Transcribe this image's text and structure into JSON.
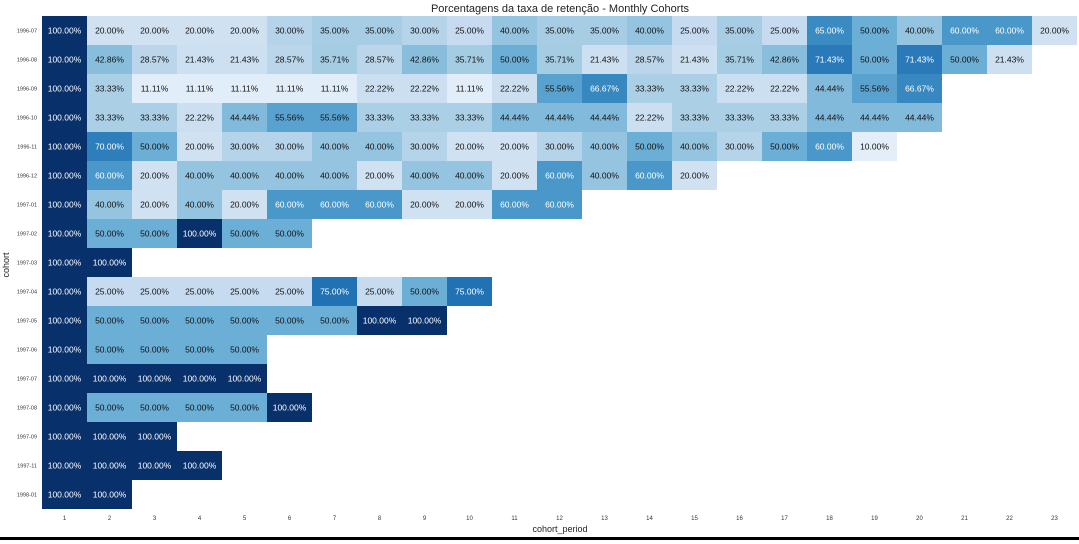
{
  "chart_data": {
    "type": "heatmap",
    "title": "Porcentagens da taxa de retenção - Monthly Cohorts",
    "xlabel": "cohort_period",
    "ylabel": "cohort",
    "x_ticks": [
      "1",
      "2",
      "3",
      "4",
      "5",
      "6",
      "7",
      "8",
      "9",
      "10",
      "11",
      "12",
      "13",
      "14",
      "15",
      "16",
      "17",
      "18",
      "19",
      "20",
      "21",
      "22",
      "23"
    ],
    "y_ticks": [
      "1996-07",
      "1996-08",
      "1996-09",
      "1996-10",
      "1996-11",
      "1996-12",
      "1997-01",
      "1997-02",
      "1997-03",
      "1997-04",
      "1997-05",
      "1997-06",
      "1997-07",
      "1997-08",
      "1997-09",
      "1997-11",
      "1998-01"
    ],
    "value_range": [
      0,
      100
    ],
    "colormap": "Blues",
    "values": [
      [
        100,
        20,
        20,
        20,
        20,
        30,
        35,
        35,
        30,
        25,
        40,
        35,
        35,
        40,
        25,
        35,
        25,
        65,
        50,
        40,
        60,
        60,
        20
      ],
      [
        100,
        42.86,
        28.57,
        21.43,
        21.43,
        28.57,
        35.71,
        28.57,
        42.86,
        35.71,
        50,
        35.71,
        21.43,
        28.57,
        21.43,
        35.71,
        42.86,
        71.43,
        50,
        71.43,
        50,
        21.43
      ],
      [
        100,
        33.33,
        11.11,
        11.11,
        11.11,
        11.11,
        11.11,
        22.22,
        22.22,
        11.11,
        22.22,
        55.56,
        66.67,
        33.33,
        33.33,
        22.22,
        22.22,
        44.44,
        55.56,
        66.67
      ],
      [
        100,
        33.33,
        33.33,
        22.22,
        44.44,
        55.56,
        55.56,
        33.33,
        33.33,
        33.33,
        44.44,
        44.44,
        44.44,
        22.22,
        33.33,
        33.33,
        33.33,
        44.44,
        44.44,
        44.44
      ],
      [
        100,
        70,
        50,
        20,
        30,
        30,
        40,
        40,
        30,
        20,
        20,
        30,
        40,
        50,
        40,
        30,
        50,
        60,
        10
      ],
      [
        100,
        60,
        20,
        40,
        40,
        40,
        40,
        20,
        40,
        40,
        20,
        60,
        40,
        60,
        20
      ],
      [
        100,
        40,
        20,
        40,
        20,
        60,
        60,
        60,
        20,
        20,
        60,
        60
      ],
      [
        100,
        50,
        50,
        100,
        50,
        50
      ],
      [
        100,
        100
      ],
      [
        100,
        25,
        25,
        25,
        25,
        25,
        75,
        25,
        50,
        75
      ],
      [
        100,
        50,
        50,
        50,
        50,
        50,
        50,
        100,
        100
      ],
      [
        100,
        50,
        50,
        50,
        50
      ],
      [
        100,
        100,
        100,
        100,
        100
      ],
      [
        100,
        50,
        50,
        50,
        50,
        100
      ],
      [
        100,
        100,
        100
      ],
      [
        100,
        100,
        100,
        100
      ],
      [
        100,
        100
      ]
    ],
    "grid": false,
    "legend": "none"
  }
}
